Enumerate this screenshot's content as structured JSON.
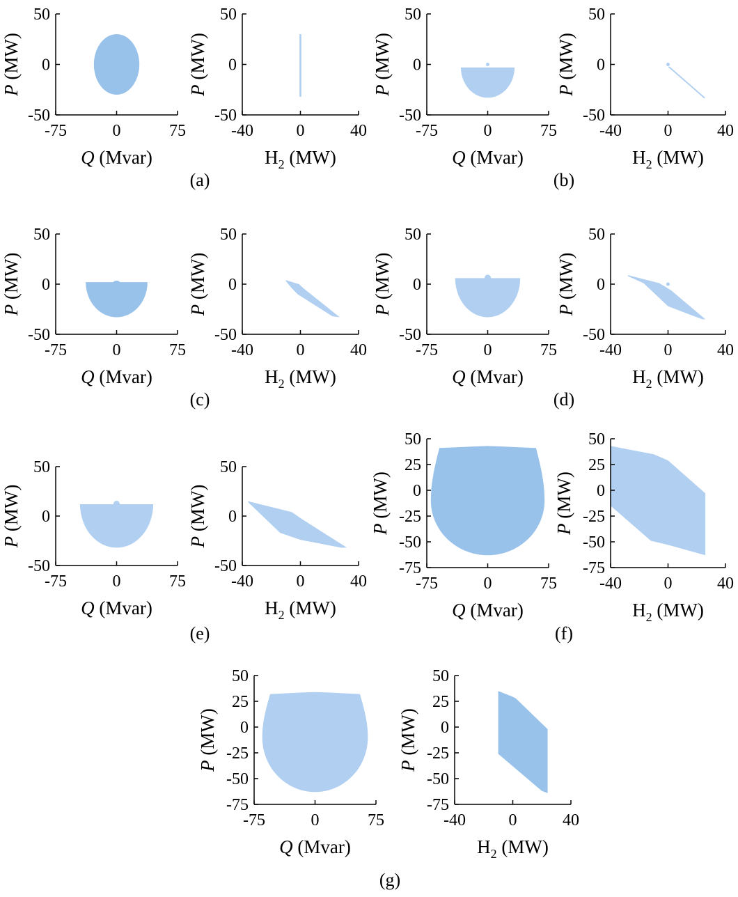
{
  "colors": {
    "dark": "#99c2eb",
    "light": "#b0cff1",
    "axis": "#000000"
  },
  "panels": [
    {
      "label": "(a)",
      "plots": [
        {
          "type": "qp",
          "shade": "dark",
          "xlabel": [
            "Q",
            " (Mvar)"
          ],
          "ylabel": [
            "P",
            " (MW)"
          ],
          "xticks": [
            "-75",
            "0",
            "75"
          ],
          "yticks": [
            "50",
            "0",
            "-50"
          ],
          "xlim": [
            -75,
            75
          ],
          "ylim": [
            -50,
            50
          ],
          "region": {
            "type": "ellipse",
            "cx": 0,
            "cy": 0,
            "rx": 28,
            "ry": 30
          }
        },
        {
          "type": "hp",
          "shade": "light",
          "xlabel": [
            "H",
            "2",
            " (MW)"
          ],
          "ylabel": [
            "P",
            " (MW)"
          ],
          "xticks": [
            "-40",
            "0",
            "40"
          ],
          "yticks": [
            "50",
            "0",
            "-50"
          ],
          "xlim": [
            -40,
            40
          ],
          "ylim": [
            -50,
            50
          ],
          "region": {
            "type": "polygon",
            "points": [
              [
                -0.6,
                30
              ],
              [
                0.6,
                30
              ],
              [
                0.6,
                -32
              ],
              [
                -0.6,
                -32
              ]
            ]
          }
        }
      ]
    },
    {
      "label": "(b)",
      "plots": [
        {
          "type": "qp",
          "shade": "light",
          "xlabel": [
            "Q",
            " (Mvar)"
          ],
          "ylabel": [
            "P",
            " (MW)"
          ],
          "xticks": [
            "-75",
            "0",
            "75"
          ],
          "yticks": [
            "50",
            "0",
            "-50"
          ],
          "xlim": [
            -75,
            75
          ],
          "ylim": [
            -50,
            50
          ],
          "region": {
            "type": "bowl",
            "left": -33,
            "right": 33,
            "top": -3,
            "bottom": -33,
            "cap": 0
          },
          "dot": [
            0,
            0
          ]
        },
        {
          "type": "hp",
          "shade": "light",
          "xlabel": [
            "H",
            "2",
            " (MW)"
          ],
          "ylabel": [
            "P",
            " (MW)"
          ],
          "xticks": [
            "-40",
            "0",
            "40"
          ],
          "yticks": [
            "50",
            "0",
            "-50"
          ],
          "xlim": [
            -40,
            40
          ],
          "ylim": [
            -50,
            50
          ],
          "region": {
            "type": "polygon",
            "points": [
              [
                1,
                -2
              ],
              [
                26,
                -33
              ],
              [
                25,
                -33.5
              ],
              [
                0,
                -2.5
              ]
            ]
          },
          "dot": [
            0,
            0
          ]
        }
      ]
    },
    {
      "label": "(c)",
      "plots": [
        {
          "type": "qp",
          "shade": "dark",
          "xlabel": [
            "Q",
            " (Mvar)"
          ],
          "ylabel": [
            "P",
            " (MW)"
          ],
          "xticks": [
            "-75",
            "0",
            "75"
          ],
          "yticks": [
            "50",
            "0",
            "-50"
          ],
          "xlim": [
            -75,
            75
          ],
          "ylim": [
            -50,
            50
          ],
          "region": {
            "type": "bowl",
            "left": -38,
            "right": 38,
            "top": 2,
            "bottom": -33,
            "cap": 3
          }
        },
        {
          "type": "hp",
          "shade": "light",
          "xlabel": [
            "H",
            "2",
            " (MW)"
          ],
          "ylabel": [
            "P",
            " (MW)"
          ],
          "xticks": [
            "-40",
            "0",
            "40"
          ],
          "yticks": [
            "50",
            "0",
            "-50"
          ],
          "xlim": [
            -40,
            40
          ],
          "ylim": [
            -50,
            50
          ],
          "region": {
            "type": "polygon",
            "points": [
              [
                -10,
                4
              ],
              [
                -1,
                0
              ],
              [
                2,
                -4
              ],
              [
                27,
                -33
              ],
              [
                22,
                -32
              ],
              [
                -2,
                -10
              ],
              [
                -6,
                -4
              ],
              [
                -10,
                3
              ]
            ]
          }
        }
      ]
    },
    {
      "label": "(d)",
      "plots": [
        {
          "type": "qp",
          "shade": "light",
          "xlabel": [
            "Q",
            " (Mvar)"
          ],
          "ylabel": [
            "P",
            " (MW)"
          ],
          "xticks": [
            "-75",
            "0",
            "75"
          ],
          "yticks": [
            "50",
            "0",
            "-50"
          ],
          "xlim": [
            -75,
            75
          ],
          "ylim": [
            -50,
            50
          ],
          "region": {
            "type": "bowl",
            "left": -40,
            "right": 40,
            "top": 6,
            "bottom": -33,
            "cap": 9
          }
        },
        {
          "type": "hp",
          "shade": "light",
          "xlabel": [
            "H",
            "2",
            " (MW)"
          ],
          "ylabel": [
            "P",
            " (MW)"
          ],
          "xticks": [
            "-40",
            "0",
            "40"
          ],
          "yticks": [
            "50",
            "0",
            "-50"
          ],
          "xlim": [
            -40,
            40
          ],
          "ylim": [
            -50,
            50
          ],
          "region": {
            "type": "polygon",
            "points": [
              [
                -28,
                9
              ],
              [
                -6,
                1
              ],
              [
                2,
                -6
              ],
              [
                26,
                -35
              ],
              [
                24,
                -35
              ],
              [
                20,
                -33
              ],
              [
                0,
                -22
              ],
              [
                -17,
                1
              ],
              [
                -28,
                8
              ]
            ]
          },
          "dot": [
            0,
            0
          ]
        }
      ]
    },
    {
      "label": "(e)",
      "plots": [
        {
          "type": "qp",
          "shade": "light",
          "xlabel": [
            "Q",
            " (Mvar)"
          ],
          "ylabel": [
            "P",
            " (MW)"
          ],
          "xticks": [
            "-75",
            "0",
            "75"
          ],
          "yticks": [
            "50",
            "0",
            "-50"
          ],
          "xlim": [
            -75,
            75
          ],
          "ylim": [
            -50,
            50
          ],
          "region": {
            "type": "bowl",
            "left": -45,
            "right": 45,
            "top": 12,
            "bottom": -32,
            "cap": 15
          }
        },
        {
          "type": "hp",
          "shade": "light",
          "xlabel": [
            "H",
            "2",
            " (MW)"
          ],
          "ylabel": [
            "P",
            " (MW)"
          ],
          "xticks": [
            "-40",
            "0",
            "40"
          ],
          "yticks": [
            "50",
            "0",
            "-50"
          ],
          "xlim": [
            -40,
            40
          ],
          "ylim": [
            -50,
            50
          ],
          "region": {
            "type": "polygon",
            "points": [
              [
                -36,
                15
              ],
              [
                -6,
                4
              ],
              [
                1,
                -3
              ],
              [
                32,
                -32
              ],
              [
                28,
                -32
              ],
              [
                0,
                -24
              ],
              [
                -14,
                -17
              ],
              [
                -36,
                14
              ]
            ]
          }
        }
      ]
    },
    {
      "label": "(f)",
      "plots": [
        {
          "type": "qp",
          "shade": "dark",
          "xlabel": [
            "Q",
            " (Mvar)"
          ],
          "ylabel": [
            "P",
            " (MW)"
          ],
          "xticks": [
            "-75",
            "0",
            "75"
          ],
          "yticks": [
            "50",
            "25",
            "0",
            "-25",
            "-50",
            "-75"
          ],
          "xlim": [
            -75,
            75
          ],
          "ylim": [
            -75,
            50
          ],
          "region": {
            "type": "apple",
            "halfw": 70,
            "top": 41,
            "bottom": -63,
            "cap": 43
          }
        },
        {
          "type": "hp",
          "shade": "light",
          "xlabel": [
            "H",
            "2",
            " (MW)"
          ],
          "ylabel": [
            "P",
            " (MW)"
          ],
          "xticks": [
            "-40",
            "0",
            "40"
          ],
          "yticks": [
            "50",
            "25",
            "0",
            "-25",
            "-50",
            "-75"
          ],
          "xlim": [
            -40,
            40
          ],
          "ylim": [
            -75,
            50
          ],
          "region": {
            "type": "polygon",
            "points": [
              [
                -40,
                43
              ],
              [
                -10,
                35
              ],
              [
                0,
                29
              ],
              [
                26,
                -3
              ],
              [
                26,
                -63
              ],
              [
                0,
                -53
              ],
              [
                -12,
                -49
              ],
              [
                -40,
                -15
              ]
            ]
          }
        }
      ]
    },
    {
      "label": "(g)",
      "plots": [
        {
          "type": "qp",
          "shade": "light",
          "xlabel": [
            "Q",
            " (Mvar)"
          ],
          "ylabel": [
            "P",
            " (MW)"
          ],
          "xticks": [
            "-75",
            "0",
            "75"
          ],
          "yticks": [
            "50",
            "25",
            "0",
            "-25",
            "-50",
            "-75"
          ],
          "xlim": [
            -75,
            75
          ],
          "ylim": [
            -75,
            50
          ],
          "region": {
            "type": "apple",
            "halfw": 65,
            "top": 32,
            "bottom": -63,
            "cap": 34
          }
        },
        {
          "type": "hp",
          "shade": "dark",
          "xlabel": [
            "H",
            "2",
            " (MW)"
          ],
          "ylabel": [
            "P",
            " (MW)"
          ],
          "xticks": [
            "-40",
            "0",
            "40"
          ],
          "yticks": [
            "50",
            "25",
            "0",
            "-25",
            "-50",
            "-75"
          ],
          "xlim": [
            -40,
            40
          ],
          "ylim": [
            -75,
            50
          ],
          "region": {
            "type": "polygon",
            "points": [
              [
                -10,
                35
              ],
              [
                -1,
                30
              ],
              [
                2,
                28
              ],
              [
                24,
                -2
              ],
              [
                24,
                -64
              ],
              [
                20,
                -62
              ],
              [
                -10,
                -26
              ]
            ]
          }
        }
      ]
    }
  ]
}
